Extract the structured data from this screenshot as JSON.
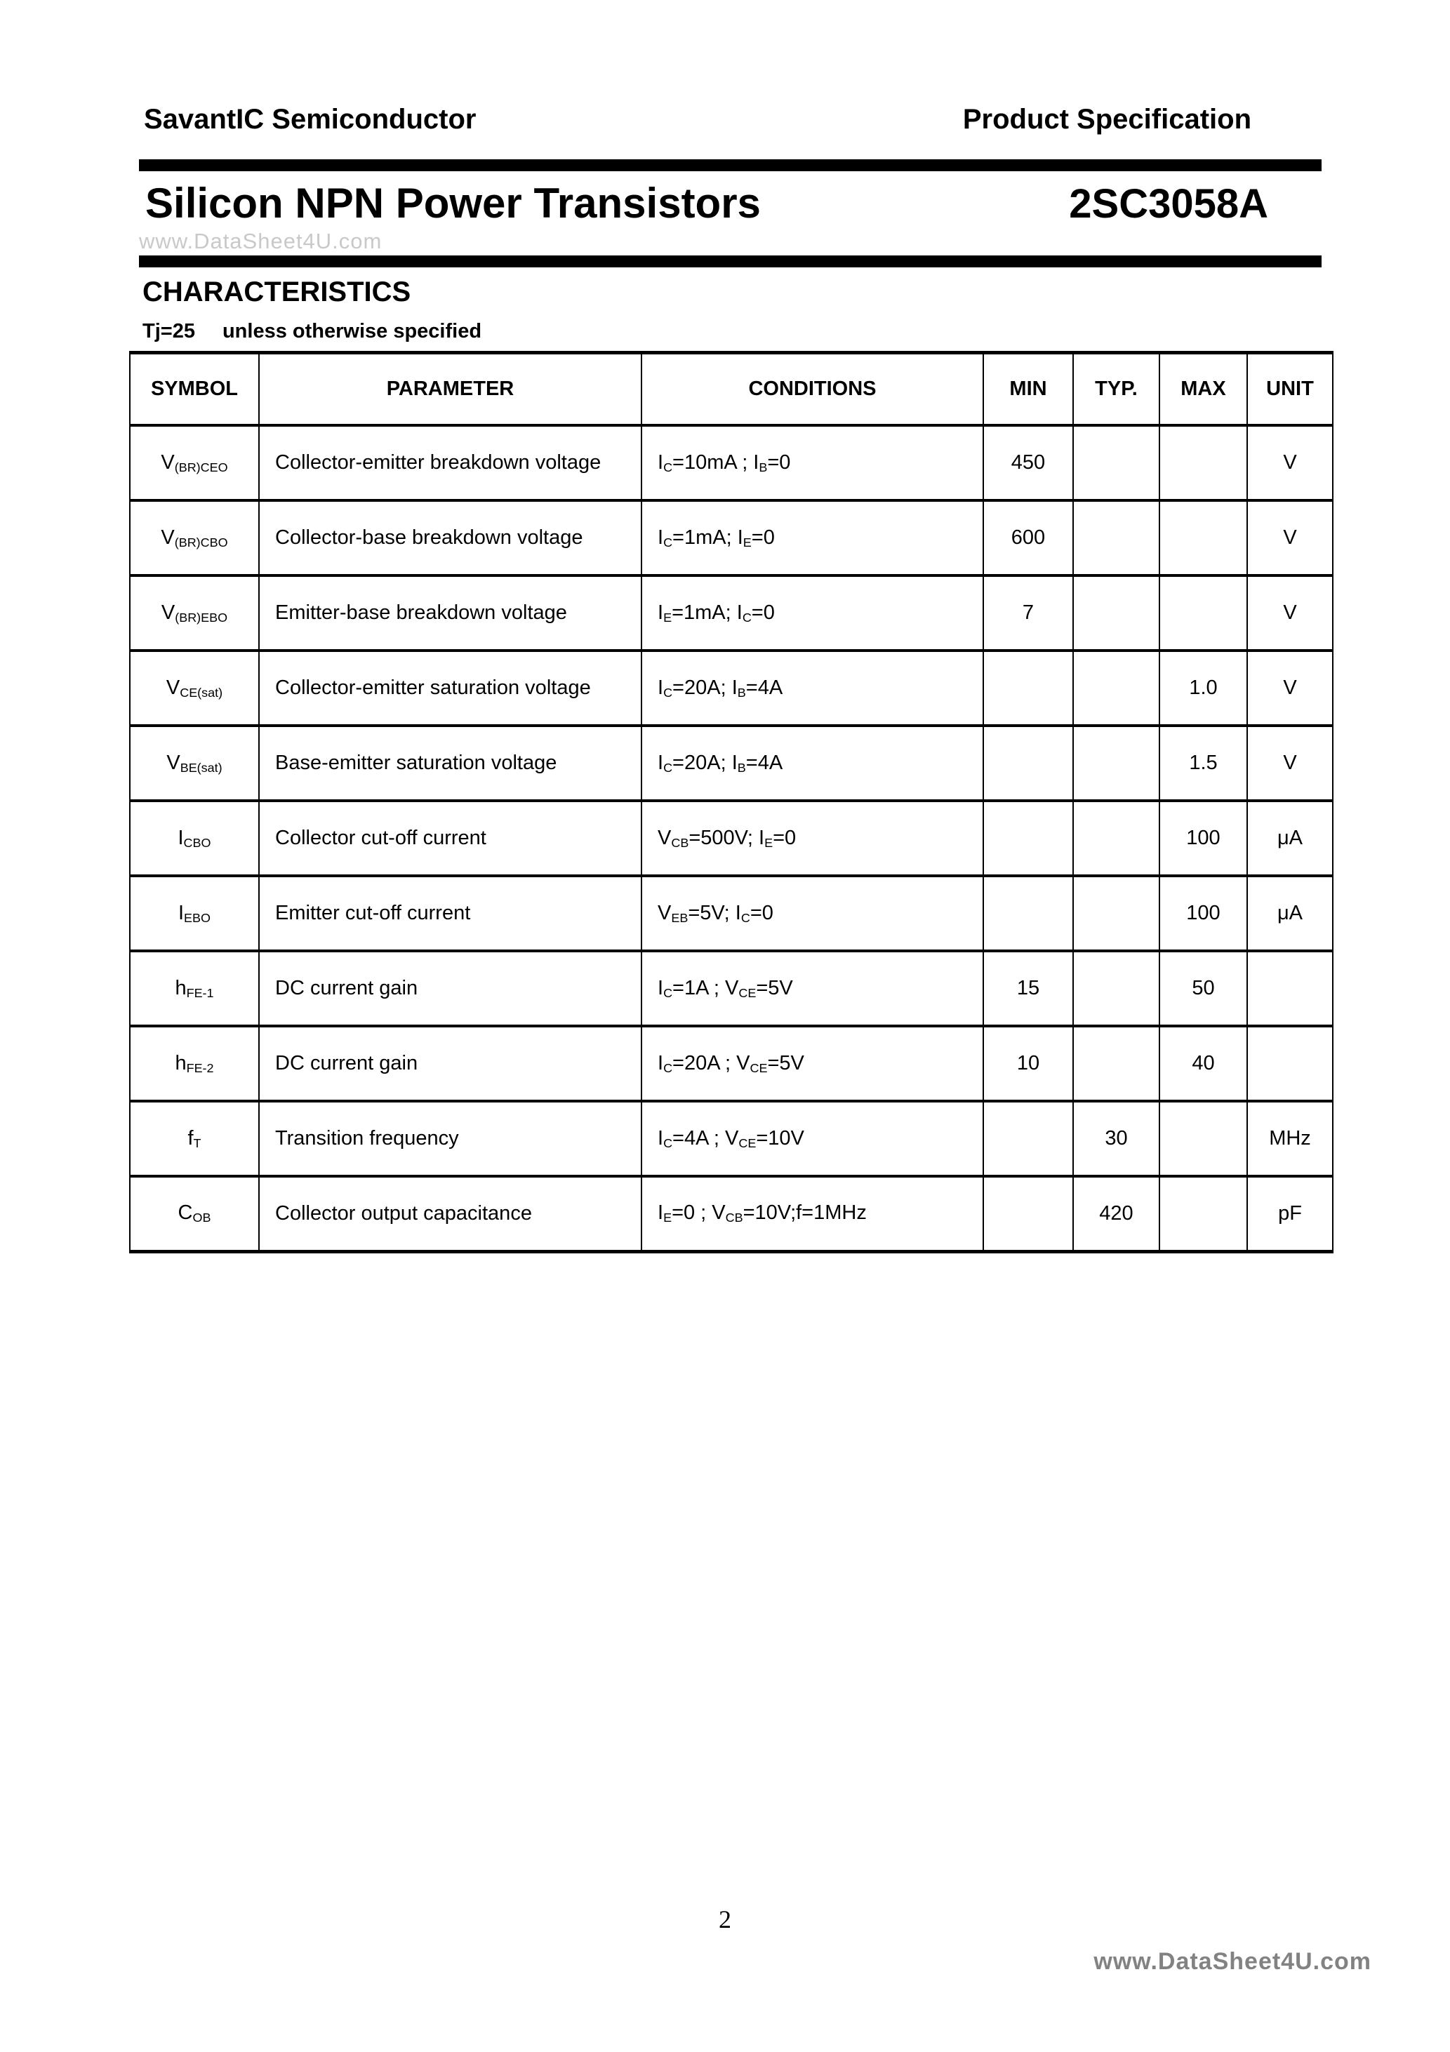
{
  "header": {
    "company": "SavantIC Semiconductor",
    "doc_type": "Product Specification"
  },
  "title": {
    "product": "Silicon NPN Power Transistors",
    "part_number": "2SC3058A"
  },
  "watermarks": {
    "top": "www.DataSheet4U.com",
    "bottom": "www.DataSheet4U.com"
  },
  "section": {
    "heading": "CHARACTERISTICS",
    "tj": "Tj=25",
    "note": "unless otherwise specified"
  },
  "table": {
    "headers": [
      "SYMBOL",
      "PARAMETER",
      "CONDITIONS",
      "MIN",
      "TYP.",
      "MAX",
      "UNIT"
    ],
    "rows": [
      {
        "symbol": [
          {
            "t": "V"
          },
          {
            "s": "(BR)CEO"
          }
        ],
        "parameter": "Collector-emitter breakdown voltage",
        "conditions": [
          {
            "t": "I"
          },
          {
            "s": "C"
          },
          {
            "t": "=10mA ; I"
          },
          {
            "s": "B"
          },
          {
            "t": "=0"
          }
        ],
        "min": "450",
        "typ": "",
        "max": "",
        "unit": "V"
      },
      {
        "symbol": [
          {
            "t": "V"
          },
          {
            "s": "(BR)CBO"
          }
        ],
        "parameter": "Collector-base breakdown voltage",
        "conditions": [
          {
            "t": "I"
          },
          {
            "s": "C"
          },
          {
            "t": "=1mA; I"
          },
          {
            "s": "E"
          },
          {
            "t": "=0"
          }
        ],
        "min": "600",
        "typ": "",
        "max": "",
        "unit": "V"
      },
      {
        "symbol": [
          {
            "t": "V"
          },
          {
            "s": "(BR)EBO"
          }
        ],
        "parameter": "Emitter-base breakdown voltage",
        "conditions": [
          {
            "t": "I"
          },
          {
            "s": "E"
          },
          {
            "t": "=1mA; I"
          },
          {
            "s": "C"
          },
          {
            "t": "=0"
          }
        ],
        "min": "7",
        "typ": "",
        "max": "",
        "unit": "V"
      },
      {
        "symbol": [
          {
            "t": "V"
          },
          {
            "s": "CE(sat)"
          }
        ],
        "parameter": "Collector-emitter saturation voltage",
        "conditions": [
          {
            "t": "I"
          },
          {
            "s": "C"
          },
          {
            "t": "=20A; I"
          },
          {
            "s": "B"
          },
          {
            "t": "=4A"
          }
        ],
        "min": "",
        "typ": "",
        "max": "1.0",
        "unit": "V"
      },
      {
        "symbol": [
          {
            "t": "V"
          },
          {
            "s": "BE(sat)"
          }
        ],
        "parameter": "Base-emitter saturation voltage",
        "conditions": [
          {
            "t": "I"
          },
          {
            "s": "C"
          },
          {
            "t": "=20A; I"
          },
          {
            "s": "B"
          },
          {
            "t": "=4A"
          }
        ],
        "min": "",
        "typ": "",
        "max": "1.5",
        "unit": "V"
      },
      {
        "symbol": [
          {
            "t": "I"
          },
          {
            "s": "CBO"
          }
        ],
        "parameter": "Collector cut-off current",
        "conditions": [
          {
            "t": "V"
          },
          {
            "s": "CB"
          },
          {
            "t": "=500V; I"
          },
          {
            "s": "E"
          },
          {
            "t": "=0"
          }
        ],
        "min": "",
        "typ": "",
        "max": "100",
        "unit": "μA"
      },
      {
        "symbol": [
          {
            "t": "I"
          },
          {
            "s": "EBO"
          }
        ],
        "parameter": "Emitter cut-off current",
        "conditions": [
          {
            "t": "V"
          },
          {
            "s": "EB"
          },
          {
            "t": "=5V; I"
          },
          {
            "s": "C"
          },
          {
            "t": "=0"
          }
        ],
        "min": "",
        "typ": "",
        "max": "100",
        "unit": "μA"
      },
      {
        "symbol": [
          {
            "t": "h"
          },
          {
            "s": "FE-1"
          }
        ],
        "parameter": "DC current gain",
        "conditions": [
          {
            "t": "I"
          },
          {
            "s": "C"
          },
          {
            "t": "=1A ; V"
          },
          {
            "s": "CE"
          },
          {
            "t": "=5V"
          }
        ],
        "min": "15",
        "typ": "",
        "max": "50",
        "unit": ""
      },
      {
        "symbol": [
          {
            "t": "h"
          },
          {
            "s": "FE-2"
          }
        ],
        "parameter": "DC current gain",
        "conditions": [
          {
            "t": "I"
          },
          {
            "s": "C"
          },
          {
            "t": "=20A ; V"
          },
          {
            "s": "CE"
          },
          {
            "t": "=5V"
          }
        ],
        "min": "10",
        "typ": "",
        "max": "40",
        "unit": ""
      },
      {
        "symbol": [
          {
            "t": "f"
          },
          {
            "s": "T"
          }
        ],
        "parameter": "Transition frequency",
        "conditions": [
          {
            "t": "I"
          },
          {
            "s": "C"
          },
          {
            "t": "=4A ; V"
          },
          {
            "s": "CE"
          },
          {
            "t": "=10V"
          }
        ],
        "min": "",
        "typ": "30",
        "max": "",
        "unit": "MHz"
      },
      {
        "symbol": [
          {
            "t": "C"
          },
          {
            "s": "OB"
          }
        ],
        "parameter": "Collector output capacitance",
        "conditions": [
          {
            "t": "I"
          },
          {
            "s": "E"
          },
          {
            "t": "=0 ; V"
          },
          {
            "s": "CB"
          },
          {
            "t": "=10V;f=1MHz"
          }
        ],
        "min": "",
        "typ": "420",
        "max": "",
        "unit": "pF"
      }
    ]
  },
  "footer": {
    "page_number": "2"
  }
}
